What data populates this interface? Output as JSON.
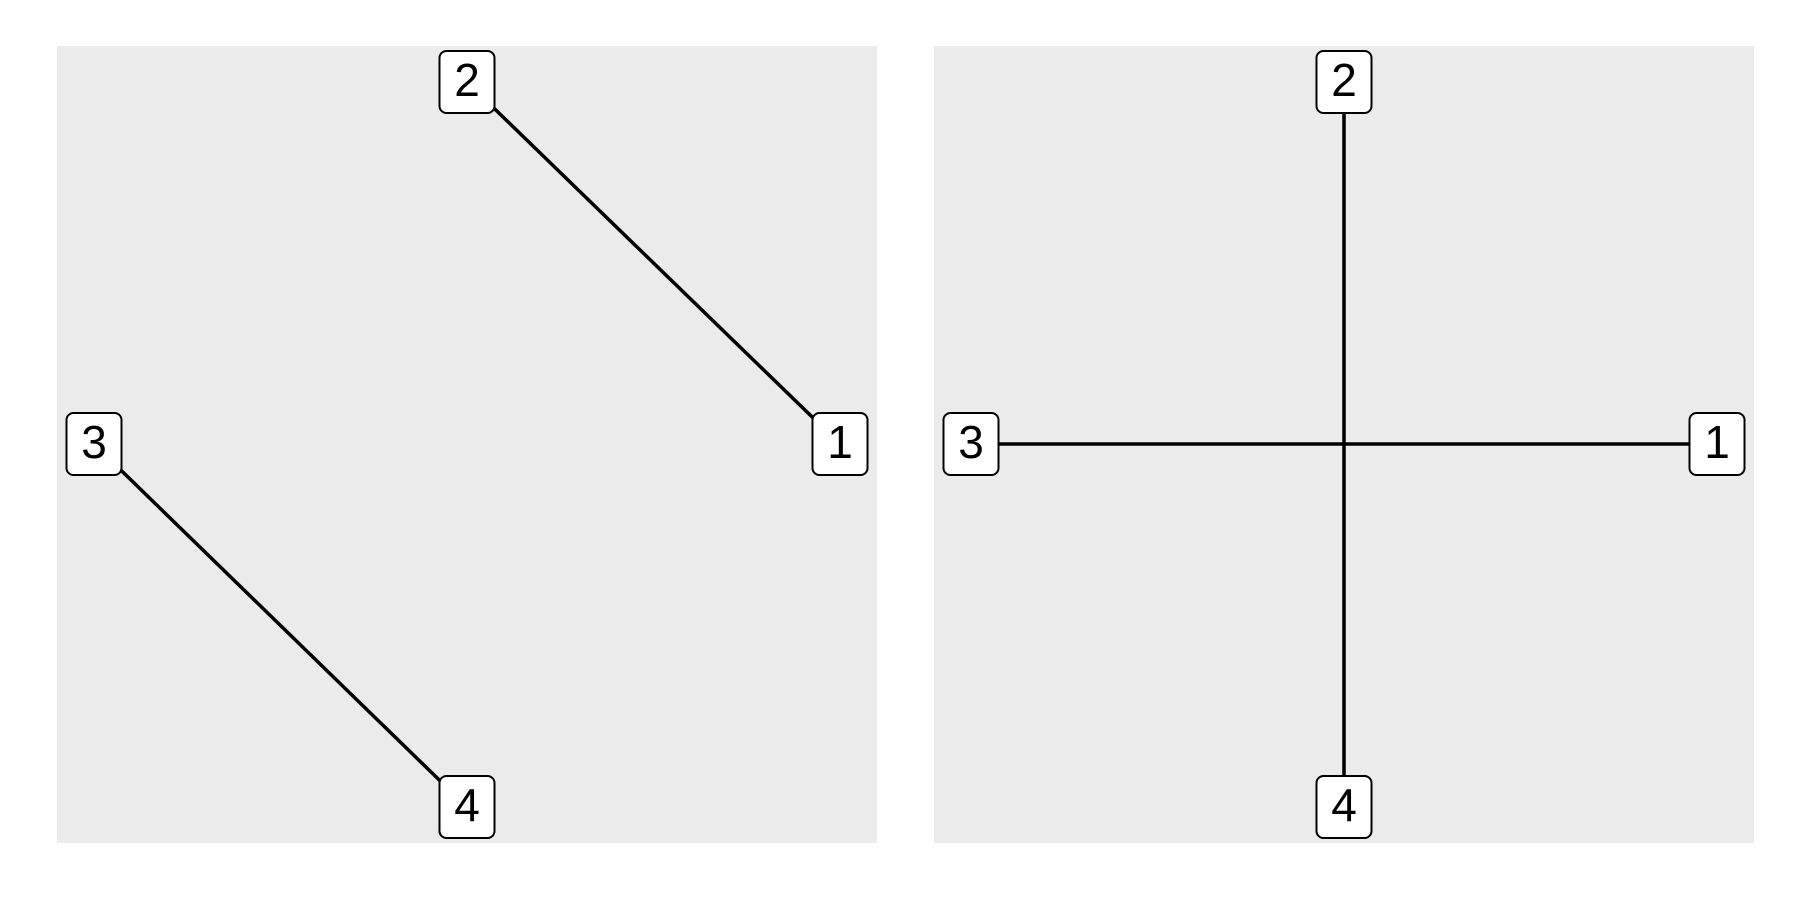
{
  "diagrams": [
    {
      "nodes": [
        {
          "id": "1",
          "label": "1"
        },
        {
          "id": "2",
          "label": "2"
        },
        {
          "id": "3",
          "label": "3"
        },
        {
          "id": "4",
          "label": "4"
        }
      ],
      "edges": [
        {
          "from": "2",
          "to": "1"
        },
        {
          "from": "3",
          "to": "4"
        }
      ]
    },
    {
      "nodes": [
        {
          "id": "1",
          "label": "1"
        },
        {
          "id": "2",
          "label": "2"
        },
        {
          "id": "3",
          "label": "3"
        },
        {
          "id": "4",
          "label": "4"
        }
      ],
      "edges": [
        {
          "from": "3",
          "to": "1"
        },
        {
          "from": "2",
          "to": "4"
        }
      ]
    }
  ],
  "colors": {
    "panel_background": "#ebebeb",
    "edge": "#000000",
    "node_fill": "#ffffff",
    "node_border": "#000000",
    "label": "#000000"
  }
}
